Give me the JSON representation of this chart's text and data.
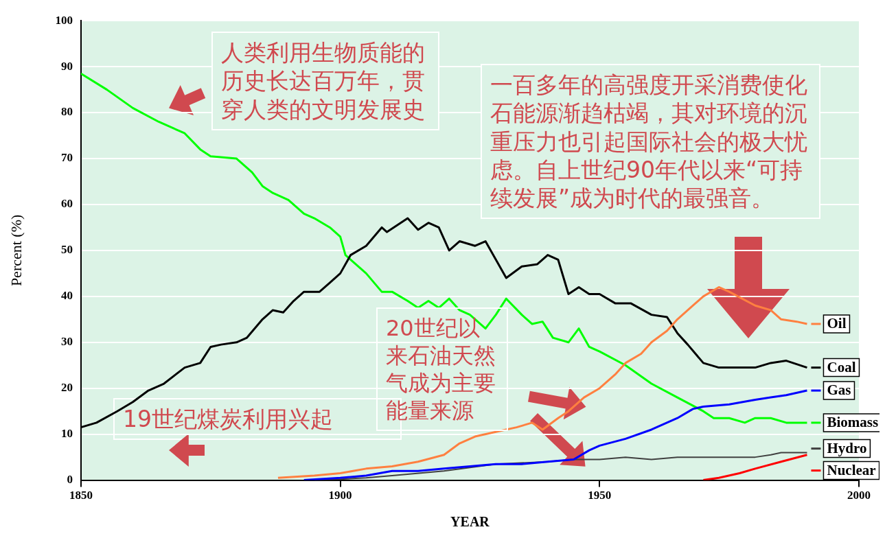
{
  "chart_data": {
    "type": "line",
    "xlabel": "YEAR",
    "ylabel": "Percent (%)",
    "xlim": [
      1850,
      2000
    ],
    "xticks": [
      1850,
      1900,
      1950,
      2000
    ],
    "ylim": [
      0,
      100
    ],
    "yticks": [
      0,
      10,
      20,
      30,
      40,
      50,
      60,
      70,
      80,
      90,
      100
    ],
    "grid": "y",
    "legend": "right",
    "marker": "none",
    "line_style": "solid",
    "series": [
      {
        "name": "Oil",
        "color": "#ff8040",
        "x": [
          1888,
          1895,
          1900,
          1905,
          1910,
          1915,
          1920,
          1923,
          1926,
          1930,
          1934,
          1937,
          1939,
          1942,
          1944,
          1947,
          1950,
          1953,
          1955,
          1958,
          1960,
          1963,
          1965,
          1968,
          1970,
          1973,
          1975,
          1980,
          1983,
          1985,
          1988,
          1990
        ],
        "values": [
          0.5,
          1,
          1.5,
          2.5,
          3,
          4,
          5.5,
          8,
          9.5,
          10.5,
          11.5,
          12.5,
          11,
          13.5,
          15,
          18,
          20,
          23,
          25.5,
          27.5,
          30,
          32.5,
          35,
          38,
          40,
          42,
          41,
          38,
          37,
          35,
          34.5,
          34
        ]
      },
      {
        "name": "Coal",
        "color": "#000000",
        "x": [
          1850,
          1853,
          1857,
          1860,
          1863,
          1866,
          1870,
          1873,
          1875,
          1877,
          1880,
          1882,
          1885,
          1887,
          1889,
          1891,
          1893,
          1896,
          1898,
          1900,
          1902,
          1905,
          1908,
          1909,
          1911,
          1913,
          1915,
          1917,
          1919,
          1921,
          1923,
          1926,
          1928,
          1930,
          1932,
          1935,
          1938,
          1940,
          1942,
          1944,
          1946,
          1948,
          1950,
          1953,
          1956,
          1960,
          1963,
          1965,
          1967,
          1970,
          1973,
          1977,
          1980,
          1983,
          1986,
          1990
        ],
        "values": [
          11.5,
          12.5,
          15,
          17,
          19.5,
          21,
          24.5,
          25.5,
          29,
          29.5,
          30,
          31,
          35,
          37,
          36.5,
          39,
          41,
          41,
          43,
          45,
          49,
          51,
          55,
          54,
          55.5,
          57,
          54.5,
          56,
          55,
          50,
          52,
          51,
          52,
          48,
          44,
          46.5,
          47,
          49,
          48,
          40.5,
          42,
          40.5,
          40.5,
          38.5,
          38.5,
          36,
          35.5,
          32,
          29.5,
          25.5,
          24.5,
          24.5,
          24.5,
          25.5,
          26,
          24.5
        ]
      },
      {
        "name": "Gas",
        "color": "#0000ff",
        "x": [
          1893,
          1900,
          1905,
          1910,
          1915,
          1920,
          1925,
          1930,
          1935,
          1940,
          1945,
          1948,
          1950,
          1955,
          1960,
          1965,
          1968,
          1970,
          1975,
          1980,
          1983,
          1986,
          1990
        ],
        "values": [
          0,
          0.5,
          1,
          2,
          2,
          2.5,
          3,
          3.5,
          3.5,
          4,
          4.5,
          6.5,
          7.5,
          9,
          11,
          13.5,
          15.5,
          16,
          16.5,
          17.5,
          18,
          18.5,
          19.5
        ]
      },
      {
        "name": "Biomass",
        "color": "#00ff00",
        "x": [
          1850,
          1855,
          1860,
          1865,
          1870,
          1873,
          1875,
          1880,
          1883,
          1885,
          1887,
          1890,
          1893,
          1895,
          1898,
          1900,
          1901,
          1905,
          1908,
          1910,
          1913,
          1915,
          1917,
          1919,
          1921,
          1923,
          1925,
          1928,
          1930,
          1932,
          1935,
          1937,
          1939,
          1941,
          1944,
          1946,
          1948,
          1950,
          1955,
          1960,
          1965,
          1970,
          1972,
          1975,
          1978,
          1980,
          1983,
          1986,
          1990
        ],
        "values": [
          88.5,
          85,
          81,
          78,
          75.5,
          72,
          70.5,
          70,
          67,
          64,
          62.5,
          61,
          58,
          57,
          55,
          53,
          49,
          45,
          41,
          41,
          39,
          37.5,
          39,
          37.5,
          39.5,
          37,
          36,
          33,
          36,
          39.5,
          36,
          34,
          34.5,
          31,
          30,
          33,
          29,
          28,
          25,
          21,
          18,
          15,
          13.5,
          13.5,
          12.5,
          13.5,
          13.5,
          12.5,
          12.5
        ]
      },
      {
        "name": "Hydro",
        "color": "#404040",
        "x": [
          1895,
          1900,
          1905,
          1910,
          1920,
          1930,
          1940,
          1945,
          1950,
          1955,
          1960,
          1965,
          1970,
          1975,
          1980,
          1983,
          1985,
          1990
        ],
        "values": [
          0,
          0.2,
          0.5,
          1,
          2,
          3.5,
          4,
          4.5,
          4.5,
          5,
          4.5,
          5,
          5,
          5,
          5,
          5.5,
          6,
          6
        ]
      },
      {
        "name": "Nuclear",
        "color": "#ff0000",
        "x": [
          1970,
          1973,
          1977,
          1980,
          1985,
          1990
        ],
        "values": [
          0,
          0.5,
          1.5,
          2.5,
          4,
          5.5
        ]
      }
    ],
    "annotations": [
      "人类利用生物质能的历史长达百万年，贯穿人类的文明发展史",
      "一百多年的高强度开采消费使化石能源渐趋枯竭，其对环境的沉重压力也引起国际社会的极大忧虑。自上世纪90年代以来“可持续发展”成为时代的最强音。",
      "20世纪以来石油天然气成为主要能量来源",
      "19世纪煤炭利用兴起"
    ]
  }
}
